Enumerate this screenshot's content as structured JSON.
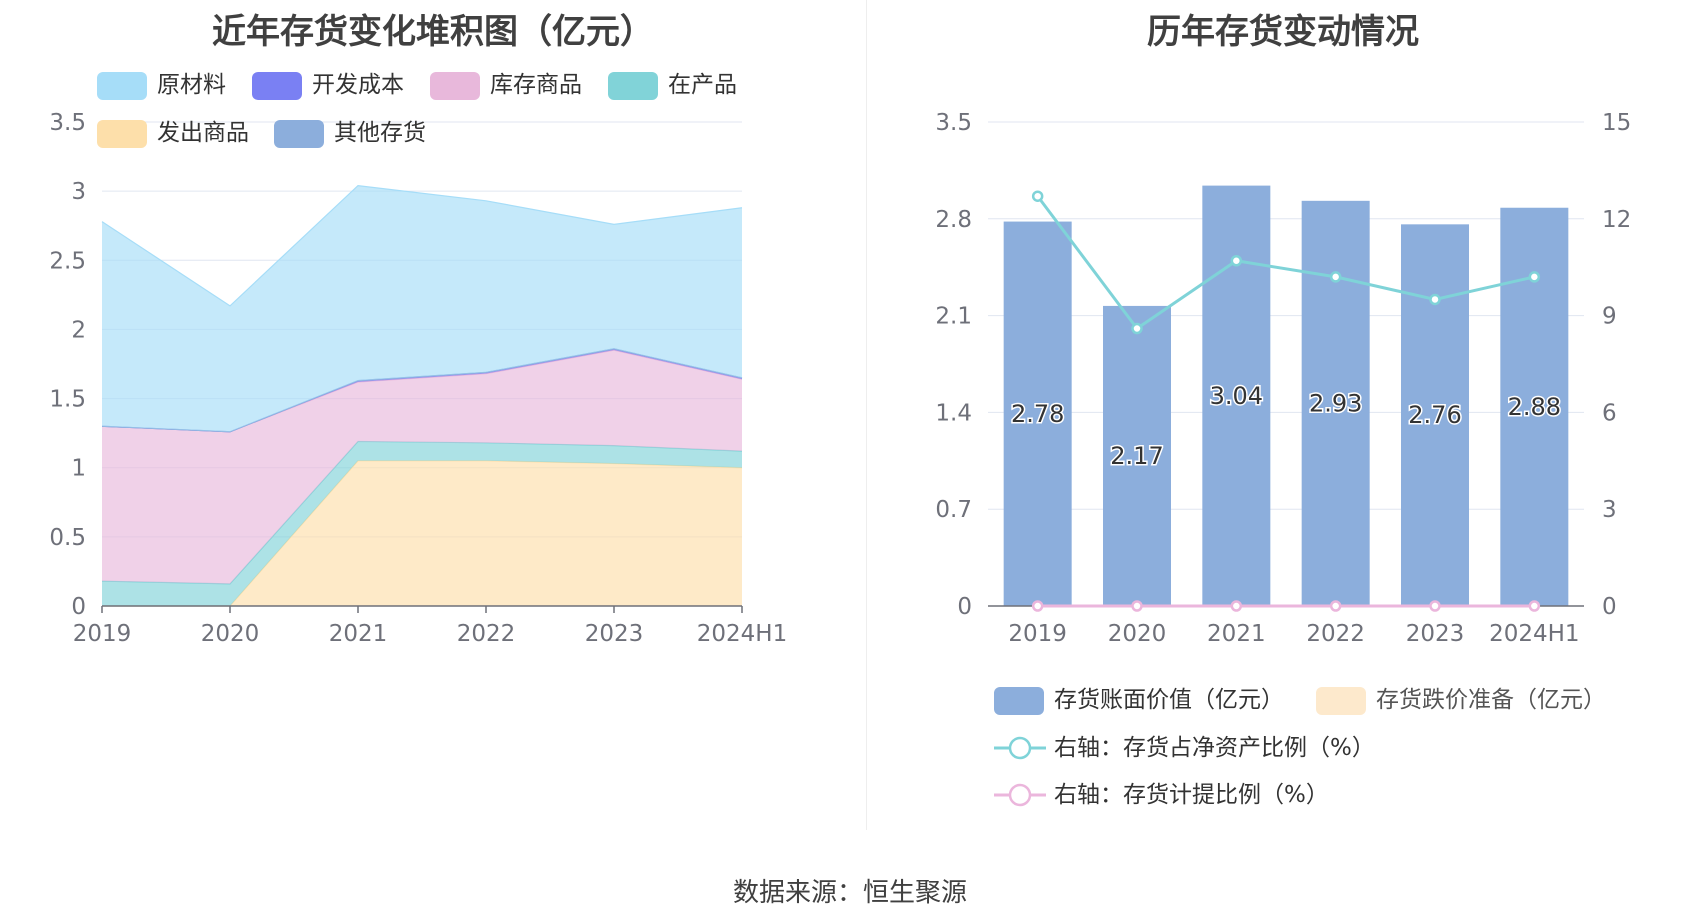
{
  "source": "数据来源：恒生聚源",
  "chart_data": [
    {
      "type": "area",
      "stacked": true,
      "title": "近年存货变化堆积图（亿元）",
      "categories": [
        "2019",
        "2020",
        "2021",
        "2022",
        "2023",
        "2024H1"
      ],
      "ylim": [
        0,
        3.5
      ],
      "yticks": [
        "0",
        "0.5",
        "1",
        "1.5",
        "2",
        "2.5",
        "3",
        "3.5"
      ],
      "grid": true,
      "legend_position": "bottom",
      "series": [
        {
          "name": "发出商品",
          "color": "#FDDFAA",
          "values": [
            0,
            0,
            1.05,
            1.05,
            1.03,
            1.0
          ]
        },
        {
          "name": "在产品",
          "color": "#81D3D8",
          "values": [
            0.18,
            0.16,
            0.14,
            0.13,
            0.13,
            0.12
          ]
        },
        {
          "name": "库存商品",
          "color": "#E8B8DB",
          "values": [
            1.12,
            1.1,
            0.43,
            0.5,
            0.69,
            0.52
          ]
        },
        {
          "name": "开发成本",
          "color": "#7A80F3",
          "values": [
            0,
            0,
            0.01,
            0.01,
            0.01,
            0.01
          ]
        },
        {
          "name": "其他存货",
          "color": "#8CAEDC",
          "values": [
            0,
            0,
            0,
            0,
            0,
            0
          ]
        },
        {
          "name": "原材料",
          "color": "#A6DDF8",
          "values": [
            1.48,
            0.91,
            1.41,
            1.24,
            0.9,
            1.23
          ]
        }
      ],
      "legend_order": [
        "原材料",
        "开发成本",
        "库存商品",
        "在产品",
        "发出商品",
        "其他存货"
      ]
    },
    {
      "type": "bar",
      "title": "历年存货变动情况",
      "categories": [
        "2019",
        "2020",
        "2021",
        "2022",
        "2023",
        "2024H1"
      ],
      "ylim": [
        0,
        3.5
      ],
      "yticks": [
        "0",
        "0.7",
        "1.4",
        "2.1",
        "2.8",
        "3.5"
      ],
      "y2lim": [
        0,
        15
      ],
      "y2ticks": [
        "0",
        "3",
        "6",
        "9",
        "12",
        "15"
      ],
      "grid": true,
      "legend_position": "bottom",
      "series": [
        {
          "name": "存货账面价值（亿元）",
          "axis": "left",
          "kind": "bar",
          "color": "#8CAEDC",
          "values": [
            2.78,
            2.17,
            3.04,
            2.93,
            2.76,
            2.88
          ],
          "labels": [
            "2.78",
            "2.17",
            "3.04",
            "2.93",
            "2.76",
            "2.88"
          ]
        },
        {
          "name": "存货跌价准备（亿元）",
          "axis": "left",
          "kind": "bar",
          "color": "#FDE9CC",
          "values": [
            0,
            0,
            0,
            0,
            0,
            0
          ]
        },
        {
          "name": "右轴：存货占净资产比例（%）",
          "axis": "right",
          "kind": "line",
          "color": "#7FD3D8",
          "values": [
            12.7,
            8.6,
            10.7,
            10.2,
            9.5,
            10.2
          ]
        },
        {
          "name": "右轴：存货计提比例（%）",
          "axis": "right",
          "kind": "line",
          "color": "#EBB6DC",
          "values": [
            0,
            0,
            0,
            0,
            0,
            0
          ]
        }
      ]
    }
  ]
}
